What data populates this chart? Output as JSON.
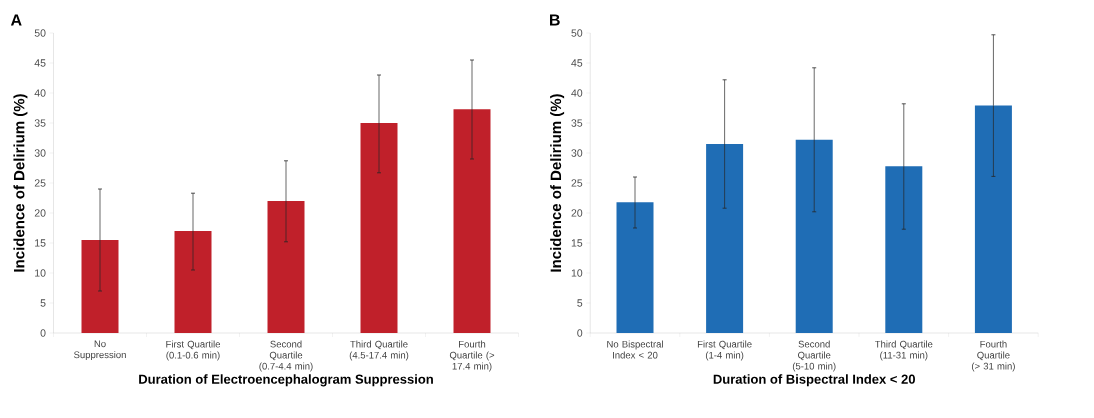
{
  "chart_data": [
    {
      "type": "bar",
      "title": "A",
      "xlabel": "Duration of Electroencephalogram Suppression",
      "ylabel": "Incidence of Delirium (%)",
      "categories": [
        "No Suppression",
        "First Quartile (0.1-0.6 min)",
        "Second Quartile (0.7-4.4 min)",
        "Third Quartile (4.5-17.4 min)",
        "Fourth Quartile (> 17.4 min)"
      ],
      "values": [
        15.5,
        17,
        22,
        35,
        37.3
      ],
      "errors": [
        [
          7,
          24
        ],
        [
          10.5,
          23.3
        ],
        [
          15.2,
          28.7
        ],
        [
          26.7,
          43
        ],
        [
          29,
          45.5
        ]
      ],
      "color": "#c0202a",
      "ylim": [
        0,
        50
      ],
      "yticks": [
        0,
        5,
        10,
        15,
        20,
        25,
        30,
        35,
        40,
        45,
        50
      ]
    },
    {
      "type": "bar",
      "title": "B",
      "xlabel": "Duration of Bispectral Index < 20",
      "ylabel": "Incidence of Delirium (%)",
      "categories": [
        "No Bispectral Index < 20",
        "First Quartile (1-4 min)",
        "Second Quartile (5-10 min)",
        "Third Quartile (11-31 min)",
        "Fourth Quartile (> 31 min)"
      ],
      "values": [
        21.8,
        31.5,
        32.2,
        27.8,
        37.9
      ],
      "errors": [
        [
          17.5,
          26
        ],
        [
          20.8,
          42.2
        ],
        [
          20.2,
          44.2
        ],
        [
          17.3,
          38.2
        ],
        [
          26.1,
          49.7
        ]
      ],
      "color": "#1f6db5",
      "ylim": [
        0,
        50
      ],
      "yticks": [
        0,
        5,
        10,
        15,
        20,
        25,
        30,
        35,
        40,
        45,
        50
      ]
    }
  ]
}
